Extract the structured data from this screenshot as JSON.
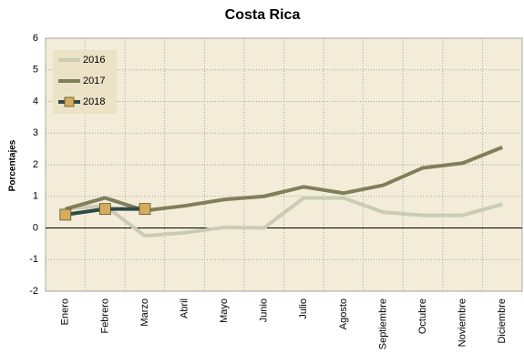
{
  "chart_data": {
    "type": "line",
    "title": "Costa Rica",
    "y_label": "Porcentajes",
    "categories": [
      "Enero",
      "Febrero",
      "Marzo",
      "Abril",
      "Mayo",
      "Junio",
      "Julio",
      "Agosto",
      "Septiembre",
      "Octubre",
      "Noviembre",
      "Diciembre"
    ],
    "series": [
      {
        "name": "2016",
        "color": "#c9ccb5",
        "values": [
          0.6,
          0.7,
          -0.25,
          -0.15,
          0.02,
          0.0,
          0.95,
          0.95,
          0.5,
          0.4,
          0.4,
          0.75
        ]
      },
      {
        "name": "2017",
        "color": "#7f7f5a",
        "values": [
          0.6,
          0.95,
          0.55,
          0.7,
          0.9,
          1.0,
          1.3,
          1.1,
          1.35,
          1.9,
          2.05,
          2.55
        ]
      },
      {
        "name": "2018",
        "color": "#2f4a47",
        "marker": "square",
        "marker_color": "#d6ac5c",
        "values": [
          0.42,
          0.6,
          0.6,
          null,
          null,
          null,
          null,
          null,
          null,
          null,
          null,
          null
        ]
      }
    ],
    "ylim": [
      -2,
      6
    ],
    "yticks": [
      -2,
      -1,
      0,
      1,
      2,
      3,
      4,
      5,
      6
    ],
    "grid": true,
    "legend_position": "upper left"
  }
}
